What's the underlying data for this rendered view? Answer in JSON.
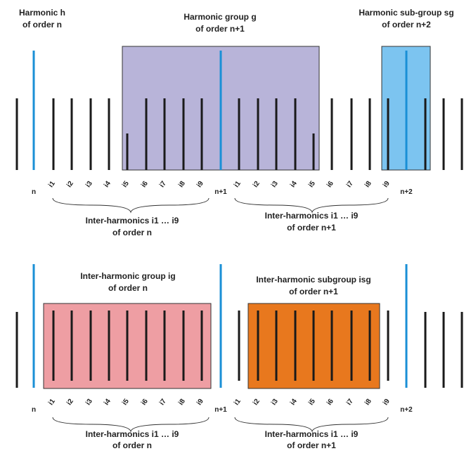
{
  "colors": {
    "black_line": "#1a1a1a",
    "blue_line": "#1a8fd6",
    "group_fill": "#b8b4d9",
    "subgroup_fill": "#7cc4f0",
    "ih_group_fill": "#ee9ea3",
    "ih_subgroup_fill": "#e8781e"
  },
  "top": {
    "harmonic_label": {
      "line1": "Harmonic h",
      "line2": "of order n"
    },
    "group_label": {
      "line1": "Harmonic group g",
      "line2": "of order n+1"
    },
    "subgroup_label": {
      "line1": "Harmonic sub-group sg",
      "line2": "of order n+2"
    },
    "ticks": {
      "n": "n",
      "n1": "n+1",
      "n2": "n+2",
      "first": [
        "i1",
        "i2",
        "i3",
        "i4",
        "i5",
        "i6",
        "i7",
        "i8",
        "i9"
      ],
      "second": [
        "i1",
        "i2",
        "i3",
        "i4",
        "i5",
        "i6",
        "i7",
        "i8",
        "i9"
      ]
    },
    "brace_left": {
      "line1": "Inter-harmonics i1 … i9",
      "line2": "of order n"
    },
    "brace_right": {
      "line1": "Inter-harmonics i1 … i9",
      "line2": "of order n+1"
    }
  },
  "bottom": {
    "ih_group_label": {
      "line1": "Inter-harmonic group ig",
      "line2": "of order n"
    },
    "ih_subgroup_label": {
      "line1": "Inter-harmonic subgroup isg",
      "line2": "of order n+1"
    },
    "ticks": {
      "n": "n",
      "n1": "n+1",
      "n2": "n+2",
      "first": [
        "i1",
        "i2",
        "i3",
        "i4",
        "i5",
        "i6",
        "i7",
        "i8",
        "i9"
      ],
      "second": [
        "i1",
        "i2",
        "i3",
        "i4",
        "i5",
        "i6",
        "i7",
        "i8",
        "i9"
      ]
    },
    "brace_left": {
      "line1": "Inter-harmonics i1 … i9",
      "line2": "of order n"
    },
    "brace_right": {
      "line1": "Inter-harmonics i1 … i9",
      "line2": "of order n+1"
    }
  }
}
